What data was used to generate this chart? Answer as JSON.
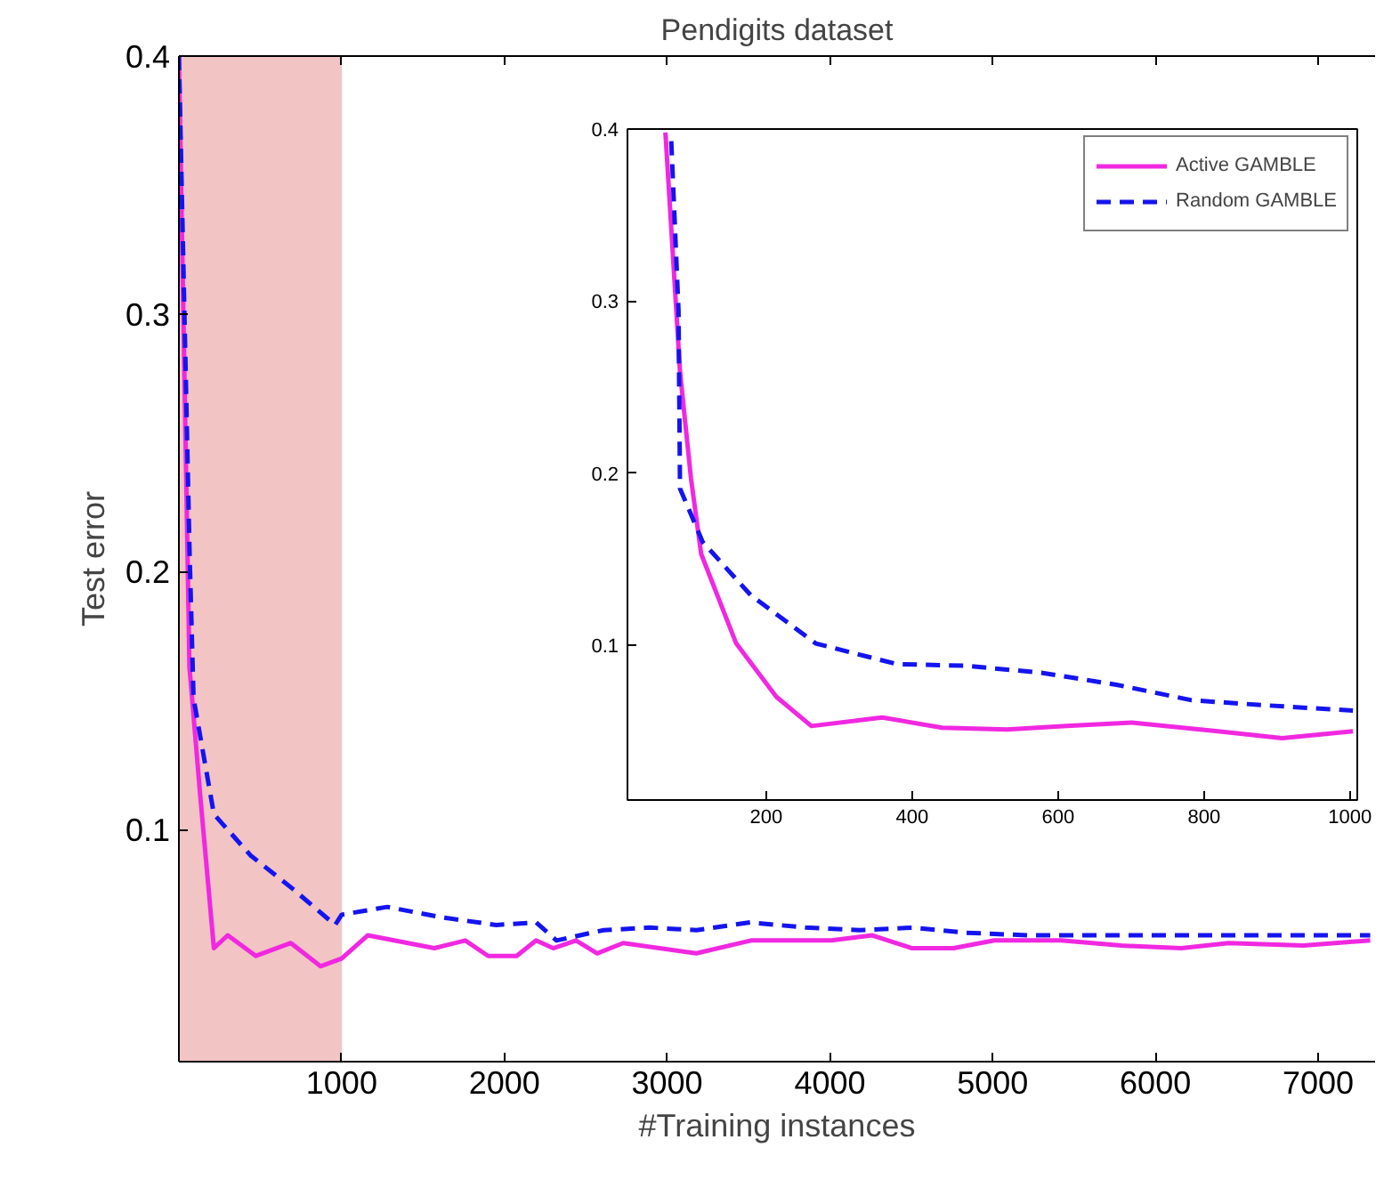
{
  "chart_data": [
    {
      "type": "line",
      "title": "Pendigits dataset",
      "xlabel": "#Training instances",
      "ylabel": "Test error",
      "xlim": [
        0,
        7350
      ],
      "ylim": [
        0.01,
        0.4
      ],
      "xticks": [
        1000,
        2000,
        3000,
        4000,
        5000,
        6000,
        7000
      ],
      "yticks": [
        0.1,
        0.2,
        0.3,
        0.4
      ],
      "grid": false,
      "bands": [
        {
          "axis": "x",
          "from": 0,
          "to": 1000,
          "color": "#f2c4c4"
        }
      ],
      "series": [
        {
          "color": "#f028e0",
          "line_style": "solid",
          "x": [
            0,
            65,
            130,
            215,
            300,
            473,
            688,
            870,
            1000,
            1160,
            1570,
            1760,
            1900,
            2075,
            2195,
            2300,
            2440,
            2570,
            2730,
            3180,
            3515,
            3760,
            4010,
            4260,
            4505,
            4760,
            5010,
            5420,
            5790,
            6160,
            6450,
            6910,
            7320
          ],
          "values": [
            0.4,
            0.163,
            0.114,
            0.054,
            0.059,
            0.051,
            0.056,
            0.047,
            0.05,
            0.059,
            0.054,
            0.057,
            0.051,
            0.051,
            0.057,
            0.054,
            0.057,
            0.052,
            0.056,
            0.052,
            0.057,
            0.057,
            0.057,
            0.059,
            0.054,
            0.054,
            0.057,
            0.057,
            0.055,
            0.054,
            0.056,
            0.055,
            0.057
          ]
        },
        {
          "color": "#1414f0",
          "line_style": "dashed",
          "x": [
            0,
            65,
            90,
            215,
            440,
            700,
            960,
            1000,
            1280,
            1610,
            1950,
            2195,
            2320,
            2610,
            2890,
            3180,
            3510,
            3850,
            4180,
            4510,
            4840,
            5215,
            5620,
            6040,
            6450,
            6870,
            7320
          ],
          "values": [
            0.4,
            0.209,
            0.151,
            0.106,
            0.09,
            0.077,
            0.063,
            0.067,
            0.07,
            0.066,
            0.063,
            0.064,
            0.057,
            0.061,
            0.062,
            0.061,
            0.064,
            0.062,
            0.061,
            0.062,
            0.06,
            0.059,
            0.059,
            0.059,
            0.059,
            0.059,
            0.059
          ]
        }
      ]
    },
    {
      "type": "line",
      "xlim": [
        10,
        1010
      ],
      "ylim": [
        0.01,
        0.4
      ],
      "xticks": [
        200,
        400,
        600,
        800,
        1000
      ],
      "yticks": [
        0.1,
        0.2,
        0.3,
        0.4
      ],
      "grid": false,
      "legend": "top right",
      "series": [
        {
          "name": "Active GAMBLE",
          "color": "#f028e0",
          "line_style": "solid",
          "x": [
            62,
            82,
            97,
            111,
            159,
            214,
            262,
            359,
            441,
            530,
            612,
            701,
            819,
            907,
            1004
          ],
          "values": [
            0.398,
            0.259,
            0.197,
            0.153,
            0.101,
            0.07,
            0.053,
            0.058,
            0.052,
            0.051,
            0.053,
            0.055,
            0.05,
            0.046,
            0.05
          ]
        },
        {
          "name": "Random GAMBLE",
          "color": "#1414f0",
          "line_style": "dashed",
          "x": [
            70,
            80,
            82,
            113,
            179,
            268,
            379,
            474,
            577,
            680,
            783,
            886,
            1004
          ],
          "values": [
            0.393,
            0.294,
            0.191,
            0.16,
            0.129,
            0.101,
            0.089,
            0.088,
            0.084,
            0.077,
            0.068,
            0.065,
            0.062
          ]
        }
      ]
    }
  ]
}
